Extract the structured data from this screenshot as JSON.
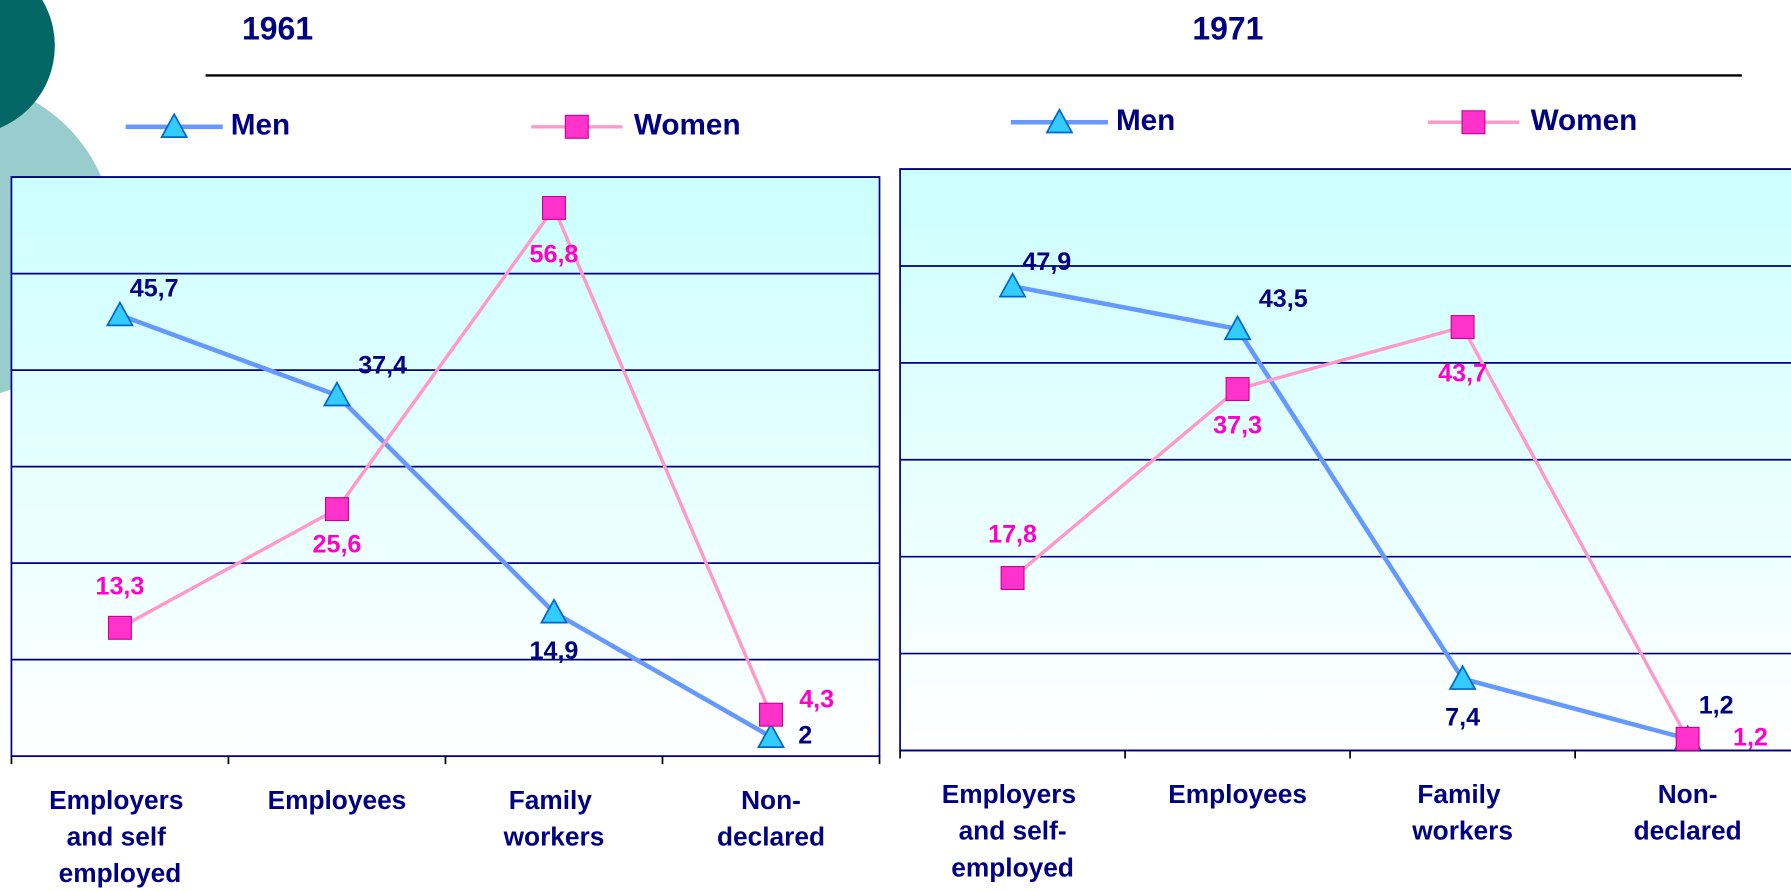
{
  "chart_data": [
    {
      "type": "line",
      "title": "1961",
      "categories": [
        "Employers and self employed",
        "Employees",
        "Family workers",
        "Non-declared"
      ],
      "series": [
        {
          "name": "Men",
          "color": "#6699ff",
          "marker_color": "#33ccff",
          "label_color": "#000080",
          "marker": "triangle",
          "values": [
            45.7,
            37.4,
            14.9,
            2
          ],
          "value_labels": [
            "45,7",
            "37,4",
            "14,9",
            "2"
          ]
        },
        {
          "name": "Women",
          "color": "#ff99cc",
          "marker_color": "#ff33cc",
          "label_color": "#ff00cc",
          "marker": "square",
          "values": [
            13.3,
            25.6,
            56.8,
            4.3
          ],
          "value_labels": [
            "13,3",
            "25,6",
            "56,8",
            "4,3"
          ]
        }
      ],
      "ylim": [
        0,
        60
      ],
      "yticks": [
        0,
        10,
        20,
        30,
        40,
        50,
        60
      ],
      "grid": true
    },
    {
      "type": "line",
      "title": "1971",
      "categories": [
        "Employers and self-employed",
        "Employees",
        "Family workers",
        "Non-declared"
      ],
      "series": [
        {
          "name": "Men",
          "color": "#6699ff",
          "marker_color": "#33ccff",
          "label_color": "#000080",
          "marker": "triangle",
          "values": [
            47.9,
            43.5,
            7.4,
            1.2
          ],
          "value_labels": [
            "47,9",
            "43,5",
            "7,4",
            "1,2"
          ]
        },
        {
          "name": "Women",
          "color": "#ff99cc",
          "marker_color": "#ff33cc",
          "label_color": "#ff00cc",
          "marker": "square",
          "values": [
            17.8,
            37.3,
            43.7,
            1.2
          ],
          "value_labels": [
            "17,8",
            "37,3",
            "43,7",
            "1,2"
          ]
        }
      ],
      "ylim": [
        0,
        60
      ],
      "yticks": [
        0,
        10,
        20,
        30,
        40,
        50,
        60
      ],
      "grid": true
    }
  ]
}
